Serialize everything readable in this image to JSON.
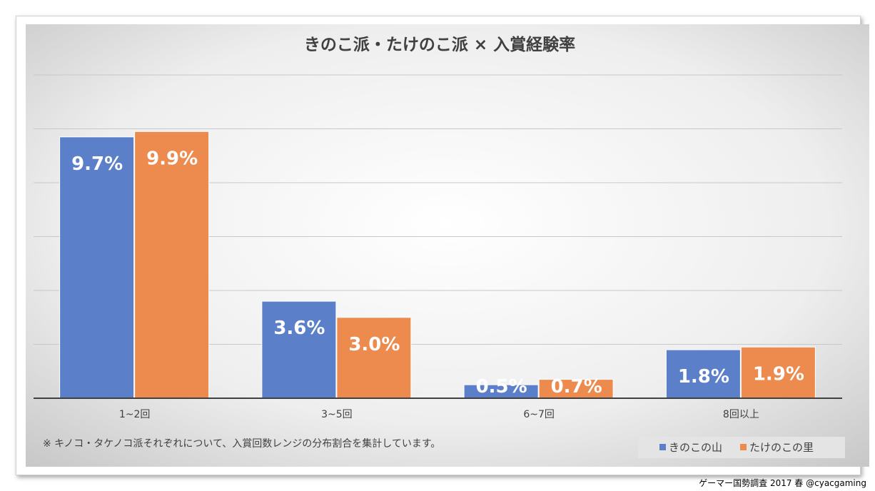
{
  "credit": "ゲーマー国勢調査 2017 春 @cyacgaming",
  "note": "※ キノコ・タケノコ派それぞれについて、入賞回数レンジの分布割合を集計しています。",
  "colors": {
    "series": [
      "#5b7fc9",
      "#ec8b4d"
    ],
    "axis": "#404040",
    "grid": "#c8c8c8"
  },
  "chart_data": {
    "type": "bar",
    "title": "きのこ派・たけのこ派 × 入賞経験率",
    "categories": [
      "1~2回",
      "3~5回",
      "6~7回",
      "8回以上"
    ],
    "series": [
      {
        "name": "きのこの山",
        "values": [
          9.7,
          3.6,
          0.5,
          1.8
        ],
        "labels": [
          "9.7%",
          "3.6%",
          "0.5%",
          "1.8%"
        ]
      },
      {
        "name": "たけのこの里",
        "values": [
          9.9,
          3.0,
          0.7,
          1.9
        ],
        "labels": [
          "9.9%",
          "3.0%",
          "0.7%",
          "1.9%"
        ]
      }
    ],
    "ylim": [
      0,
      12
    ],
    "gridlines": [
      2,
      4,
      6,
      8,
      10,
      12
    ],
    "grid": true,
    "legend": "bottom-right",
    "xlabel": "",
    "ylabel": ""
  }
}
